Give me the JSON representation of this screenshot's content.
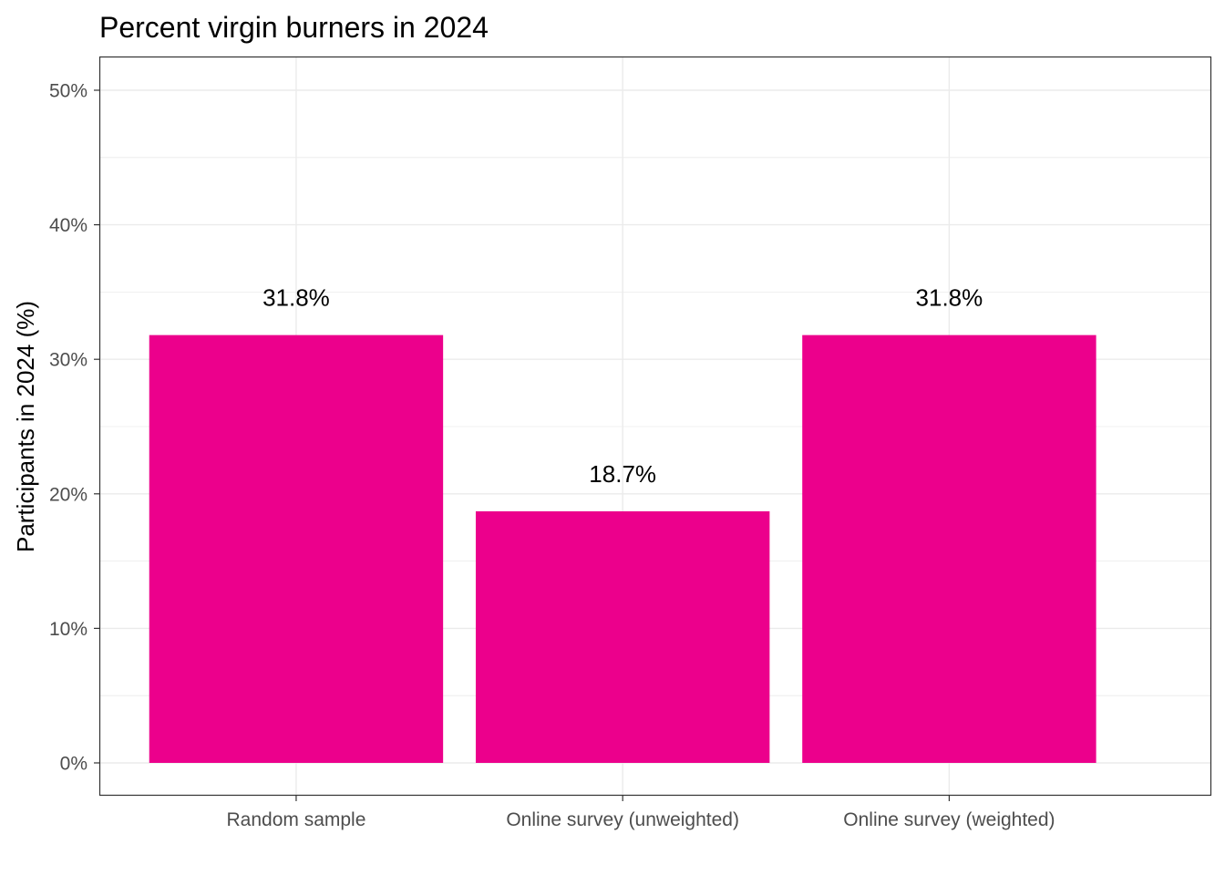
{
  "chart_data": {
    "type": "bar",
    "title": "Percent virgin burners in 2024",
    "xlabel": "",
    "ylabel": "Participants in 2024 (%)",
    "categories": [
      "Random sample",
      "Online survey (unweighted)",
      "Online survey (weighted)"
    ],
    "values": [
      31.8,
      18.7,
      31.8
    ],
    "value_labels": [
      "31.8%",
      "18.7%",
      "31.8%"
    ],
    "ylim": [
      0,
      52.5
    ],
    "yticks": [
      0,
      10,
      20,
      30,
      40,
      50
    ],
    "ytick_labels": [
      "0%",
      "10%",
      "20%",
      "30%",
      "40%",
      "50%"
    ],
    "grid": true,
    "legend": "none",
    "colors": {
      "bar": "#EC008C",
      "grid": "#ebebeb",
      "panel_border": "#333333",
      "tick_text": "#4d4d4d"
    }
  }
}
